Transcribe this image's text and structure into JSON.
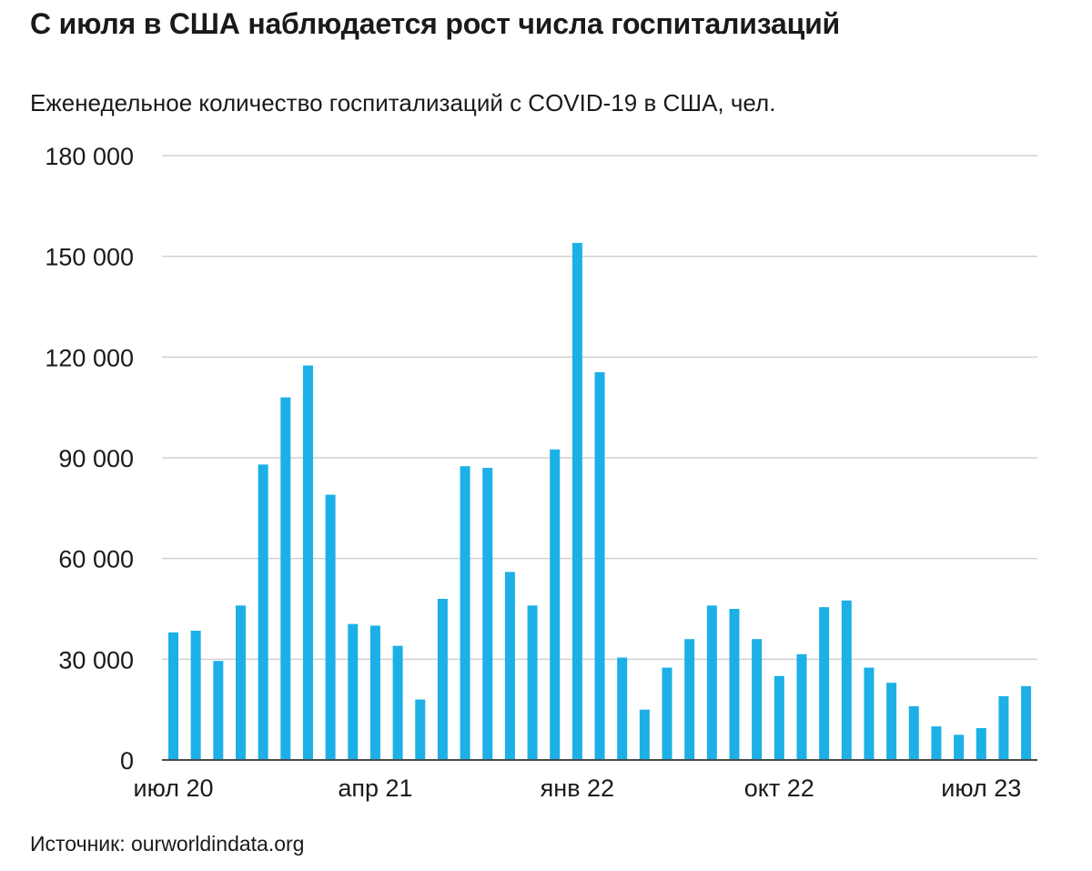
{
  "header": {
    "title": "С июля в США наблюдается рост числа госпитализаций",
    "subtitle": "Еженедельное количество госпитализаций с COVID-19 в США, чел."
  },
  "footer": {
    "source": "Источник: ourworldindata.org"
  },
  "colors": {
    "bar": "#1cb0e6",
    "grid": "#d0d0d0",
    "axis": "#4a4a4a",
    "text": "#1a1a1a"
  },
  "chart_data": {
    "type": "bar",
    "title": "С июля в США наблюдается рост числа госпитализаций",
    "subtitle": "Еженедельное количество госпитализаций с COVID-19 в США, чел.",
    "ylim": [
      0,
      180000
    ],
    "yticks": [
      0,
      30000,
      60000,
      90000,
      120000,
      150000,
      180000
    ],
    "ytick_labels": [
      "0",
      "30 000",
      "60 000",
      "90 000",
      "120 000",
      "150 000",
      "180 000"
    ],
    "xtick_labels": [
      {
        "index": 0,
        "label": "июл 20"
      },
      {
        "index": 9,
        "label": "апр 21"
      },
      {
        "index": 18,
        "label": "янв 22"
      },
      {
        "index": 27,
        "label": "окт 22"
      },
      {
        "index": 36,
        "label": "июл 23"
      }
    ],
    "grid": true,
    "values": [
      38000,
      38500,
      29500,
      46000,
      88000,
      108000,
      117500,
      79000,
      40500,
      40000,
      34000,
      18000,
      48000,
      87500,
      87000,
      56000,
      46000,
      92500,
      154000,
      115500,
      30500,
      15000,
      27500,
      36000,
      46000,
      45000,
      36000,
      25000,
      31500,
      45500,
      47500,
      27500,
      23000,
      16000,
      10000,
      7500,
      9500,
      19000,
      22000
    ]
  }
}
